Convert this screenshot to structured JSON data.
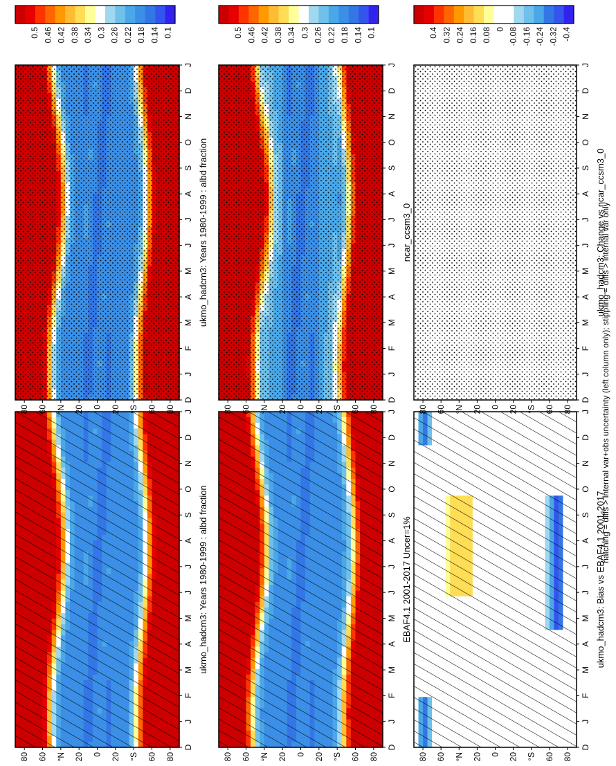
{
  "footnote": "hatching = diffs > internal var+obs uncertainty (left column only); stippling = diffs > internal var only",
  "colors": {
    "absolute": [
      "#cc0000",
      "#e60000",
      "#ff3300",
      "#ff6600",
      "#ff9900",
      "#ffbb33",
      "#ffdd55",
      "#ffff99",
      "#ffffff",
      "#a0d8ef",
      "#6fc0eb",
      "#4aa8e8",
      "#3b8fe6",
      "#3377e6",
      "#3355ee",
      "#3322ee"
    ],
    "difference": [
      "#cc0000",
      "#e60000",
      "#ff3300",
      "#ff6600",
      "#ff9900",
      "#ffbb33",
      "#ffdd55",
      "#ffff99",
      "#ffffff",
      "#ffffff",
      "#a0d8ef",
      "#6fc0eb",
      "#4aa8e8",
      "#3377e6",
      "#3355ee",
      "#3322ee"
    ]
  },
  "chart_data": [
    {
      "id": "p1",
      "type": "heatmap",
      "title": "ukmo_hadcm3: Years 1980-1999 : albd fraction",
      "x_ticks": [
        "D",
        "J",
        "F",
        "M",
        "A",
        "M",
        "J",
        "J",
        "A",
        "S",
        "O",
        "N",
        "D",
        "J"
      ],
      "y_ticks": [
        "80",
        "60",
        "°N",
        "20",
        "0",
        "20",
        "°S",
        "60",
        "80"
      ],
      "colorbar": [
        "0.5",
        "0.46",
        "0.42",
        "0.38",
        "0.34",
        "0.3",
        "0.26",
        "0.22",
        "0.18",
        "0.14",
        "0.1"
      ],
      "palette": "absolute",
      "field": "albedo",
      "overlay": "hatch"
    },
    {
      "id": "p2",
      "type": "heatmap",
      "title": "ukmo_hadcm3: Years 1980-1999 : albd fraction",
      "x_ticks": [
        "D",
        "J",
        "F",
        "M",
        "A",
        "M",
        "J",
        "J",
        "A",
        "S",
        "O",
        "N",
        "D",
        "J"
      ],
      "y_ticks": [
        "80",
        "60",
        "°N",
        "20",
        "0",
        "20",
        "°S",
        "60",
        "80"
      ],
      "colorbar": [
        "0.5",
        "0.46",
        "0.42",
        "0.38",
        "0.34",
        "0.3",
        "0.26",
        "0.22",
        "0.18",
        "0.14",
        "0.1"
      ],
      "palette": "absolute",
      "field": "albedo",
      "overlay": "stipple"
    },
    {
      "id": "p3",
      "type": "heatmap",
      "title": "EBAF4.1 2001-2017 Uncer=1%",
      "x_ticks": [
        "D",
        "J",
        "F",
        "M",
        "A",
        "M",
        "J",
        "J",
        "A",
        "S",
        "O",
        "N",
        "D",
        "J"
      ],
      "y_ticks": [
        "80",
        "60",
        "°N",
        "20",
        "0",
        "20",
        "°S",
        "60",
        "80"
      ],
      "colorbar": [
        "0.5",
        "0.46",
        "0.42",
        "0.38",
        "0.34",
        "0.3",
        "0.26",
        "0.22",
        "0.18",
        "0.14",
        "0.1"
      ],
      "palette": "absolute",
      "field": "albedo",
      "overlay": "hatch"
    },
    {
      "id": "p4",
      "type": "heatmap",
      "title": "ncar_ccsm3_0",
      "x_ticks": [
        "D",
        "J",
        "F",
        "M",
        "A",
        "M",
        "J",
        "J",
        "A",
        "S",
        "O",
        "N",
        "D",
        "J"
      ],
      "y_ticks": [
        "80",
        "60",
        "°N",
        "20",
        "0",
        "20",
        "°S",
        "60",
        "80"
      ],
      "colorbar": [
        "0.5",
        "0.46",
        "0.42",
        "0.38",
        "0.34",
        "0.3",
        "0.26",
        "0.22",
        "0.18",
        "0.14",
        "0.1"
      ],
      "palette": "absolute",
      "field": "albedo",
      "overlay": "stipple"
    },
    {
      "id": "p5",
      "type": "heatmap",
      "title": "ukmo_hadcm3: Bias vs EBAF4.1 2001-2017",
      "x_ticks": [
        "D",
        "J",
        "F",
        "M",
        "A",
        "M",
        "J",
        "J",
        "A",
        "S",
        "O",
        "N",
        "D",
        "J"
      ],
      "y_ticks": [
        "80",
        "60",
        "°N",
        "20",
        "0",
        "20",
        "°S",
        "60",
        "80"
      ],
      "colorbar": [
        "0.4",
        "0.32",
        "0.24",
        "0.16",
        "0.08",
        "0",
        "-0.08",
        "-0.16",
        "-0.24",
        "-0.32",
        "-0.4"
      ],
      "palette": "difference",
      "field": "bias",
      "overlay": "hatch"
    },
    {
      "id": "p6",
      "type": "heatmap",
      "title": "ukmo_hadcm3: Change vs ncar_ccsm3_0",
      "x_ticks": [
        "D",
        "J",
        "F",
        "M",
        "A",
        "M",
        "J",
        "J",
        "A",
        "S",
        "O",
        "N",
        "D",
        "J"
      ],
      "y_ticks": [
        "80",
        "60",
        "°N",
        "20",
        "0",
        "20",
        "°S",
        "60",
        "80"
      ],
      "colorbar": [
        "0.4",
        "0.32",
        "0.24",
        "0.16",
        "0.08",
        "0",
        "-0.08",
        "-0.16",
        "-0.24",
        "-0.32",
        "-0.4"
      ],
      "palette": "difference",
      "field": "change",
      "overlay": "stipple"
    }
  ]
}
